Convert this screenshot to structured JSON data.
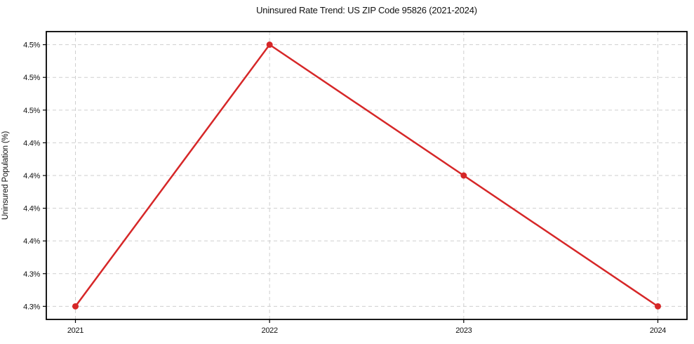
{
  "chart_data": {
    "type": "line",
    "title": "Uninsured Rate Trend: US ZIP Code 95826 (2021-2024)",
    "xlabel": "",
    "ylabel": "Uninsured Population (%)",
    "x": [
      2021,
      2022,
      2023,
      2024
    ],
    "values": [
      4.3,
      4.5,
      4.4,
      4.3
    ],
    "xlim": [
      2020.85,
      2024.15
    ],
    "ylim": [
      4.29,
      4.51
    ],
    "xticks": [
      2021,
      2022,
      2023,
      2024
    ],
    "xtick_labels": [
      "2021",
      "2022",
      "2023",
      "2024"
    ],
    "yticks": [
      4.3,
      4.325,
      4.35,
      4.375,
      4.4,
      4.425,
      4.45,
      4.475,
      4.5
    ],
    "ytick_labels": [
      "4.3%",
      "4.3%",
      "4.4%",
      "4.4%",
      "4.4%",
      "4.4%",
      "4.5%",
      "4.5%",
      "4.5%"
    ],
    "grid": true,
    "legend": false,
    "line_color": "#d62728",
    "grid_color": "#cfcfcf",
    "spine_color": "#000000",
    "text_color": "#111111",
    "background": "#ffffff"
  }
}
